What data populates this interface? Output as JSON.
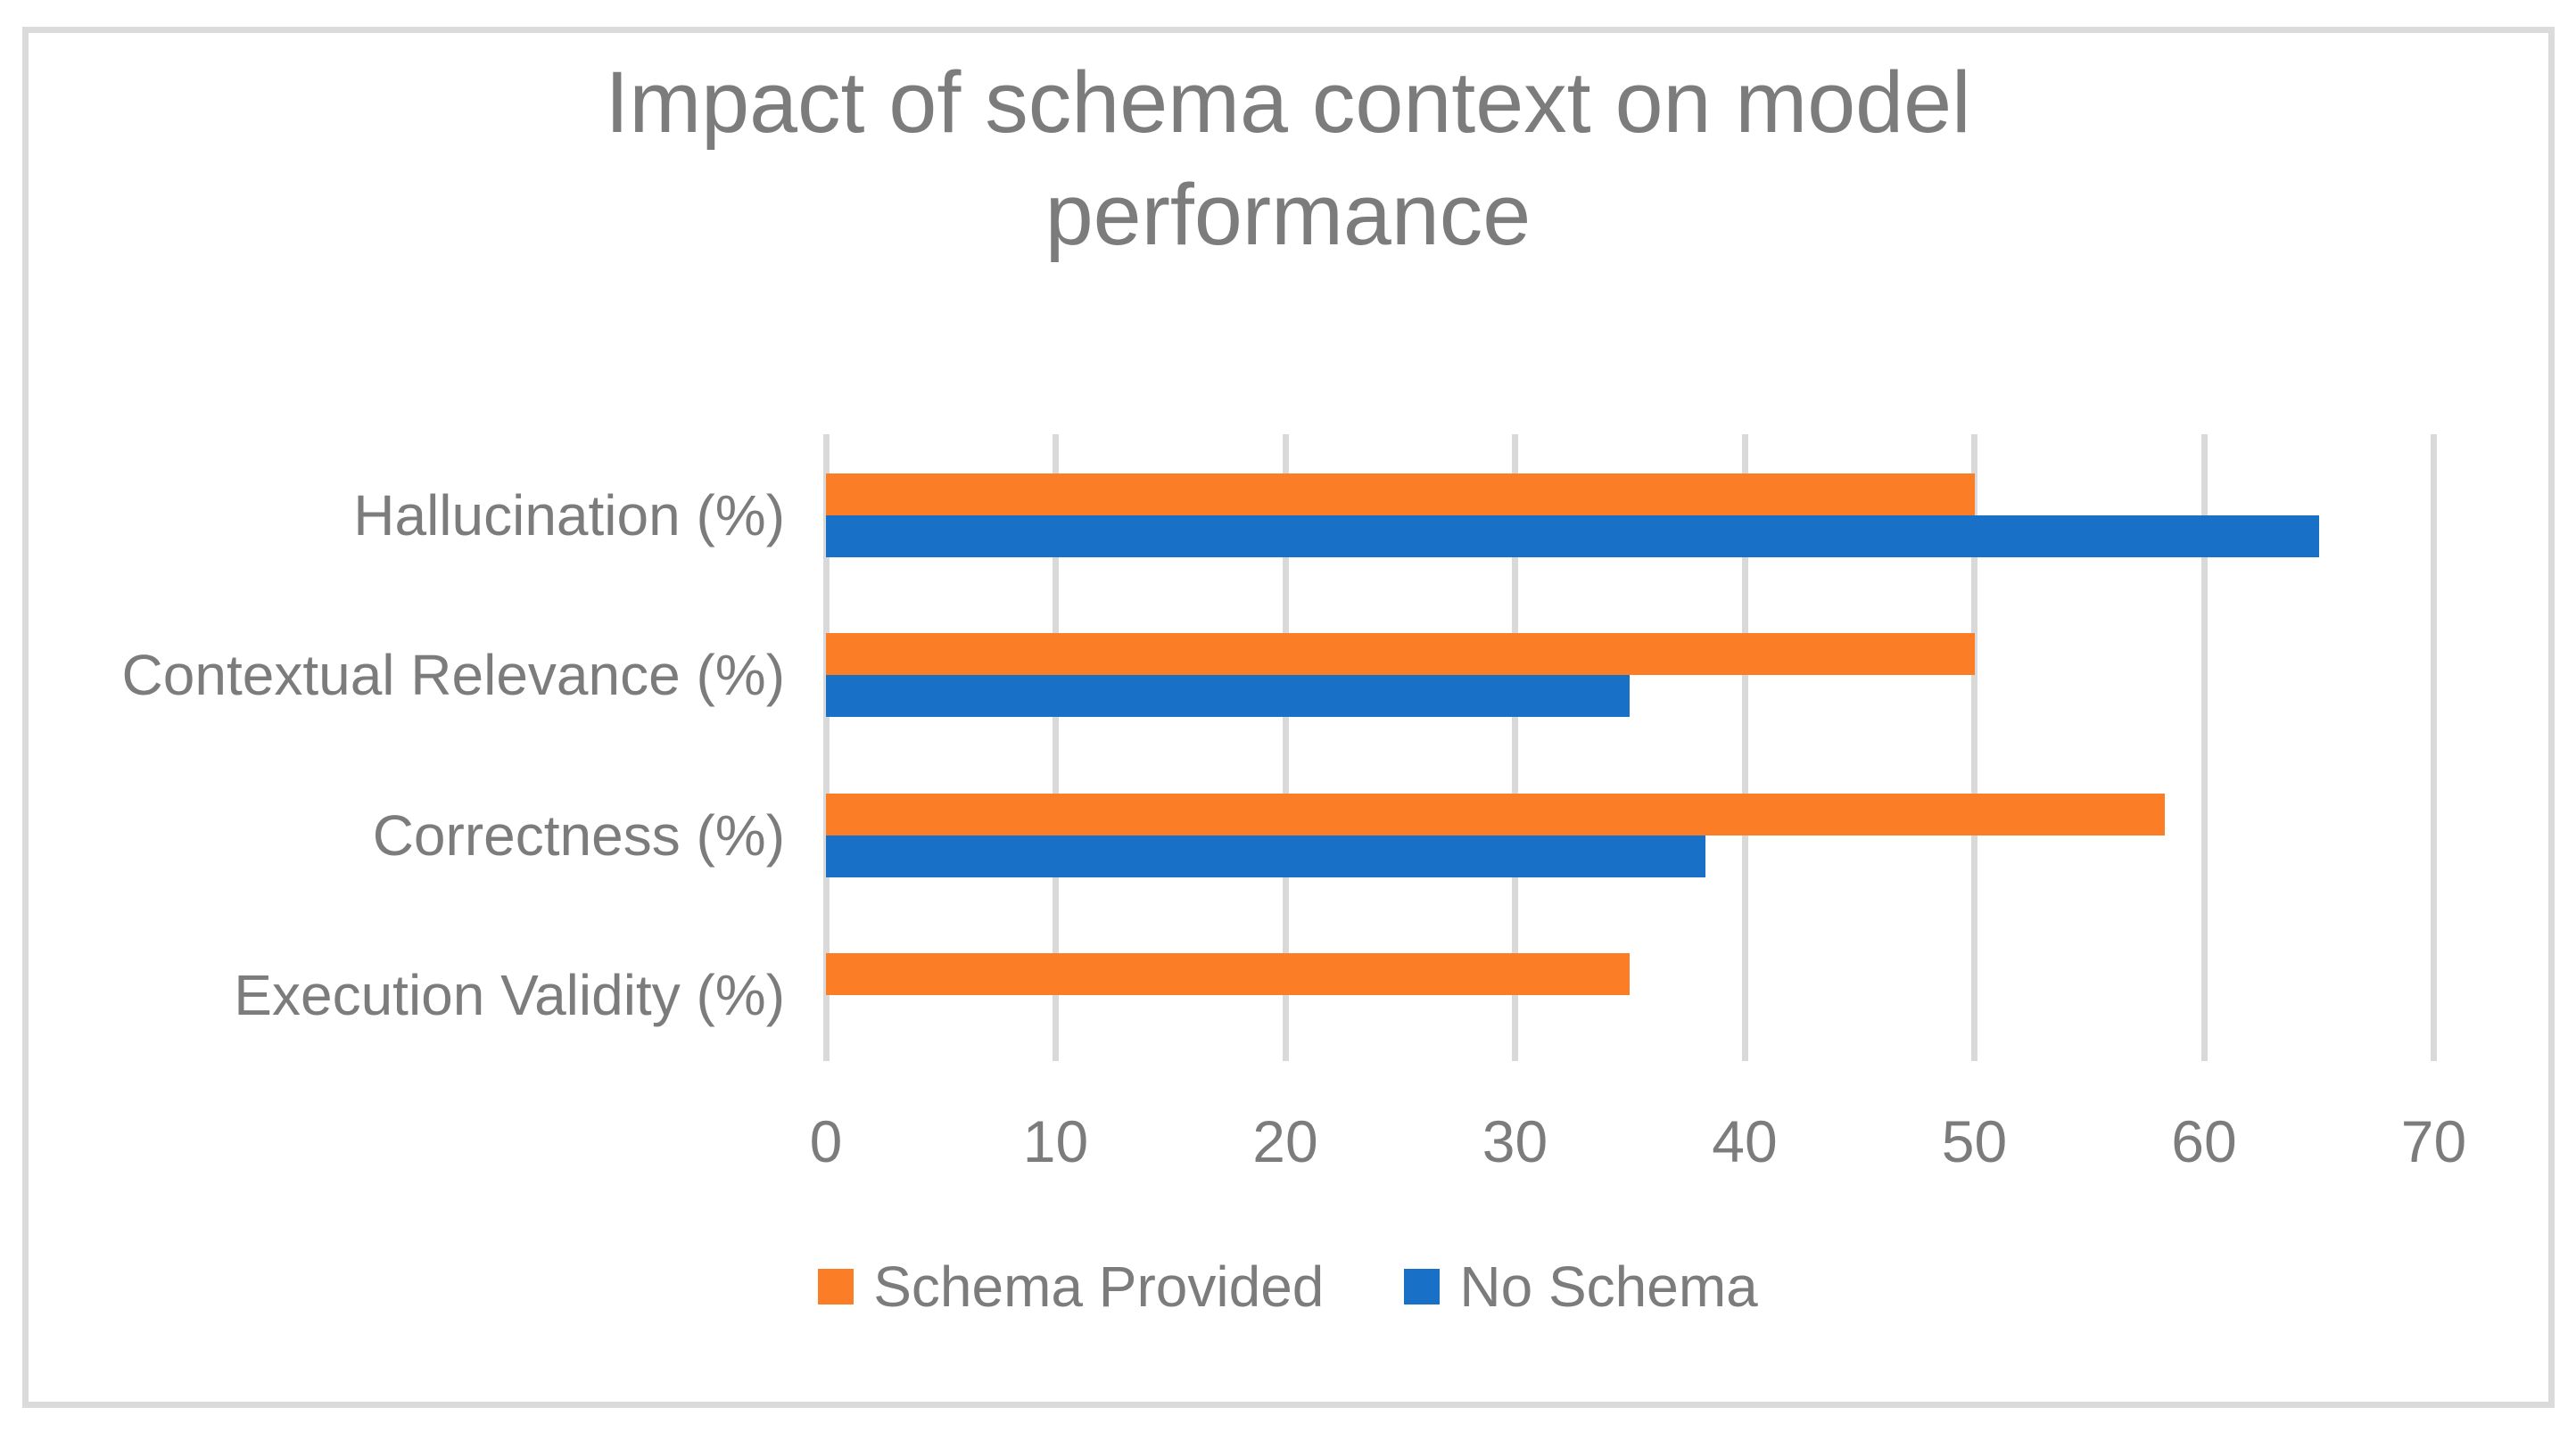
{
  "chart_data": {
    "type": "bar",
    "orientation": "horizontal",
    "title": "Impact of schema context on model performance",
    "categories": [
      "Hallucination (%)",
      "Contextual Relevance (%)",
      "Correctness (%)",
      "Execution Validity (%)"
    ],
    "series": [
      {
        "name": "Schema Provided",
        "color": "#FB7D26",
        "values": [
          50,
          50,
          58.3,
          35
        ]
      },
      {
        "name": "No Schema",
        "color": "#1971C7",
        "values": [
          65,
          35,
          38.3,
          0
        ]
      }
    ],
    "x_axis": {
      "min": 0,
      "max": 70,
      "ticks": [
        0,
        10,
        20,
        30,
        40,
        50,
        60,
        70
      ]
    },
    "grid": "vertical-only",
    "legend_position": "bottom",
    "colors": {
      "text": "#7C7C7C",
      "gridline": "#D9D9D9",
      "frame_border": "#DBDBDB",
      "background": "#FFFFFF"
    }
  }
}
